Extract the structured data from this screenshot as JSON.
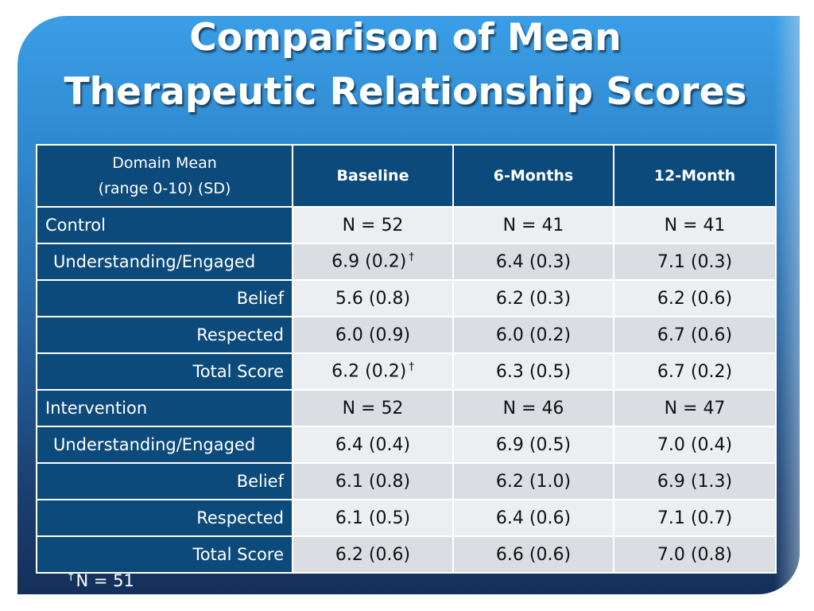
{
  "title_line1": "Comparison of Mean",
  "title_line2": "Therapeutic Relationship Scores",
  "header": {
    "domain_line1": "Domain Mean",
    "domain_line2": "(range 0-10) (SD)",
    "col1": "Baseline",
    "col2": "6-Months",
    "col3": "12-Month"
  },
  "rows": [
    {
      "label": "Control",
      "v": [
        "N = 52",
        "N = 41",
        "N = 41"
      ]
    },
    {
      "label": "Understanding/Engaged",
      "v": [
        "6.9 (0.2)",
        "6.4 (0.3)",
        "7.1 (0.3)"
      ]
    },
    {
      "label": "Belief",
      "v": [
        "5.6 (0.8)",
        "6.2 (0.3)",
        "6.2 (0.6)"
      ]
    },
    {
      "label": "Respected",
      "v": [
        "6.0 (0.9)",
        "6.0 (0.2)",
        "6.7 (0.6)"
      ]
    },
    {
      "label": "Total Score",
      "v": [
        "6.2 (0.2)",
        "6.3 (0.5)",
        "6.7 (0.2)"
      ]
    },
    {
      "label": "Intervention",
      "v": [
        "N = 52",
        "N = 46",
        "N = 47"
      ]
    },
    {
      "label": "Understanding/Engaged",
      "v": [
        "6.4 (0.4)",
        "6.9 (0.5)",
        "7.0 (0.4)"
      ]
    },
    {
      "label": "Belief",
      "v": [
        "6.1 (0.8)",
        "6.2 (1.0)",
        "6.9 (1.3)"
      ]
    },
    {
      "label": "Respected",
      "v": [
        "6.1 (0.5)",
        "6.4 (0.6)",
        "7.1 (0.7)"
      ]
    },
    {
      "label": "Total Score",
      "v": [
        "6.2 (0.6)",
        "6.6 (0.6)",
        "7.0 (0.8)"
      ]
    }
  ],
  "dagger": "†",
  "footnote": "N = 51"
}
